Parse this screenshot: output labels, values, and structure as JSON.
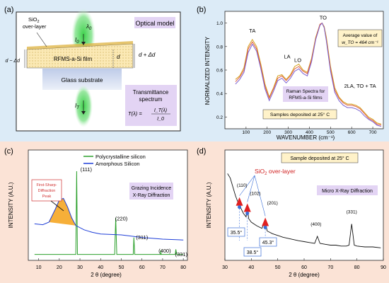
{
  "panels": {
    "a": {
      "tag": "(a)",
      "title": "Optical model",
      "overlayer_line1": "SiO",
      "overlayer_sub": "2",
      "overlayer_line2": "over-layer",
      "lambda0": "λ",
      "lambda0_sub": "0",
      "I0": "I",
      "I0_sub": "0",
      "film_label": "RFMS-a-Si film",
      "d_label": "d",
      "d_plus_label": "d + Δd",
      "d_minus_label": "d − Δd",
      "substrate_label": "Glass substrate",
      "IT": "I",
      "IT_sub": "T",
      "transmittance_title_1": "Transmittance",
      "transmittance_title_2": "spectrum",
      "formula_lhs": "T(λ) =",
      "formula_num": "I_T(λ)",
      "formula_den": "I_0"
    },
    "b": {
      "tag": "(b)",
      "xlabel": "WAVENUMBER (cm⁻¹)",
      "ylabel": "NORMALIZED INTENSITY",
      "peak_labels": [
        "TA",
        "LA",
        "LO",
        "TO"
      ],
      "second_order": "2LA, TO + TA",
      "avg_line1": "Average value of",
      "avg_line2": "w_TO = 464 cm⁻¹",
      "raman_line1": "Raman Spectra for",
      "raman_line2": "RFMS-a-Si films",
      "samples": "Samples deposited at 25° C",
      "series_colors": [
        "#d4a017",
        "#e06040",
        "#7b5fd0",
        "#3fa0d8",
        "#5a8fd0",
        "#b04fc0"
      ]
    },
    "c": {
      "tag": "(c)",
      "xlabel": "2 θ (degree)",
      "ylabel": "INTENSITY (A.U.)",
      "legend": [
        "Polycrystalline silicon",
        "Amorphous Silicon"
      ],
      "legend_colors": [
        "#2ca02c",
        "#1f3fd8"
      ],
      "fsdp_line1": "First-Sharp-",
      "fsdp_line2": "Diffraction",
      "fsdp_line3": "Peak",
      "gi_line1": "Grazing Incidence",
      "gi_line2": "X-Ray Diffraction",
      "peak_labels": [
        "(111)",
        "(220)",
        "(311)",
        "(400)",
        "(331)"
      ]
    },
    "d": {
      "tag": "(d)",
      "xlabel": "2 θ (degree)",
      "ylabel": "INTENSITY (A.U.)",
      "sample_note": "Sample deposited at 25° C",
      "sio2_label": "SiO",
      "sio2_sub": "2",
      "sio2_rest": " over-layer",
      "micro": "Micro X-Ray Diffraction",
      "peak_labels": [
        "(110)",
        "(102)",
        "(201)",
        "(400)",
        "(331)"
      ],
      "angle_labels": [
        "35.5°",
        "38.5°",
        "45.3°"
      ]
    }
  },
  "chart_data": [
    {
      "type": "line",
      "panel": "b",
      "xlabel": "WAVENUMBER (cm⁻¹)",
      "ylabel": "NORMALIZED INTENSITY",
      "xlim": [
        0,
        750
      ],
      "ylim": [
        0.1,
        1.1
      ],
      "xticks": [
        100,
        200,
        300,
        400,
        500,
        600,
        700
      ],
      "yticks": [
        0.2,
        0.4,
        0.6,
        0.8,
        1.0
      ],
      "x": [
        50,
        70,
        90,
        110,
        130,
        150,
        170,
        190,
        210,
        230,
        250,
        270,
        290,
        310,
        330,
        350,
        370,
        390,
        410,
        430,
        450,
        460,
        470,
        480,
        500,
        520,
        540,
        560,
        580,
        600,
        620,
        640,
        660,
        680,
        700,
        720,
        740
      ],
      "series": [
        {
          "values": [
            0.52,
            0.55,
            0.62,
            0.8,
            0.86,
            0.8,
            0.65,
            0.48,
            0.37,
            0.45,
            0.55,
            0.56,
            0.52,
            0.56,
            0.63,
            0.65,
            0.6,
            0.58,
            0.7,
            0.88,
            0.99,
            1.0,
            0.97,
            0.88,
            0.63,
            0.45,
            0.37,
            0.33,
            0.31,
            0.31,
            0.3,
            0.28,
            0.24,
            0.2,
            0.18,
            0.15,
            0.14
          ]
        },
        {
          "values": [
            0.5,
            0.54,
            0.6,
            0.78,
            0.84,
            0.78,
            0.63,
            0.46,
            0.36,
            0.44,
            0.53,
            0.55,
            0.51,
            0.55,
            0.61,
            0.63,
            0.59,
            0.57,
            0.69,
            0.87,
            0.99,
            1.0,
            0.96,
            0.86,
            0.61,
            0.43,
            0.36,
            0.32,
            0.3,
            0.3,
            0.29,
            0.27,
            0.23,
            0.19,
            0.17,
            0.14,
            0.13
          ]
        },
        {
          "values": [
            0.48,
            0.52,
            0.58,
            0.75,
            0.82,
            0.76,
            0.61,
            0.44,
            0.34,
            0.42,
            0.51,
            0.53,
            0.49,
            0.53,
            0.59,
            0.61,
            0.57,
            0.55,
            0.67,
            0.86,
            0.98,
            1.0,
            0.96,
            0.85,
            0.59,
            0.41,
            0.34,
            0.3,
            0.28,
            0.28,
            0.27,
            0.25,
            0.21,
            0.18,
            0.16,
            0.13,
            0.12
          ]
        }
      ]
    },
    {
      "type": "line",
      "panel": "c",
      "xlabel": "2 θ (degree)",
      "ylabel": "INTENSITY (A.U.)",
      "xlim": [
        5,
        82
      ],
      "xticks": [
        10,
        20,
        30,
        40,
        50,
        60,
        70,
        80
      ],
      "series": [
        {
          "name": "Polycrystalline silicon",
          "x": [
            8,
            28.0,
            28.4,
            28.8,
            46.8,
            47.3,
            47.8,
            55.8,
            56.1,
            56.5,
            69.0,
            69.1,
            69.3,
            76.1,
            76.4,
            76.8,
            80
          ],
          "values": [
            0.02,
            0.02,
            1.0,
            0.02,
            0.02,
            0.45,
            0.02,
            0.02,
            0.22,
            0.02,
            0.02,
            0.07,
            0.02,
            0.02,
            0.08,
            0.02,
            0.02
          ]
        },
        {
          "name": "Amorphous Silicon",
          "x": [
            8,
            12,
            15,
            18,
            20,
            22,
            24,
            26,
            28,
            32,
            36,
            40,
            50,
            60,
            70,
            80
          ],
          "values": [
            0.38,
            0.37,
            0.4,
            0.55,
            0.66,
            0.68,
            0.58,
            0.45,
            0.36,
            0.31,
            0.28,
            0.26,
            0.25,
            0.22,
            0.2,
            0.19
          ]
        }
      ]
    },
    {
      "type": "line",
      "panel": "d",
      "xlabel": "2 θ (degree)",
      "ylabel": "INTENSITY (A.U.)",
      "xlim": [
        30,
        90
      ],
      "xticks": [
        30,
        40,
        50,
        60,
        70,
        80,
        90
      ],
      "x": [
        31,
        32,
        33,
        34,
        35,
        35.5,
        36,
        37,
        38,
        38.5,
        39,
        40,
        42,
        44,
        45.3,
        46,
        48,
        50,
        52,
        55,
        58,
        60,
        62,
        64,
        65,
        66,
        68,
        70,
        72,
        74,
        76,
        77,
        78,
        79,
        80,
        83,
        86,
        89
      ],
      "values": [
        0.95,
        0.9,
        0.8,
        0.7,
        0.62,
        0.65,
        0.56,
        0.5,
        0.46,
        0.58,
        0.44,
        0.4,
        0.36,
        0.33,
        0.42,
        0.3,
        0.27,
        0.25,
        0.23,
        0.21,
        0.19,
        0.18,
        0.17,
        0.16,
        0.24,
        0.16,
        0.15,
        0.14,
        0.14,
        0.13,
        0.13,
        0.14,
        0.38,
        0.14,
        0.13,
        0.12,
        0.12,
        0.11
      ]
    }
  ]
}
